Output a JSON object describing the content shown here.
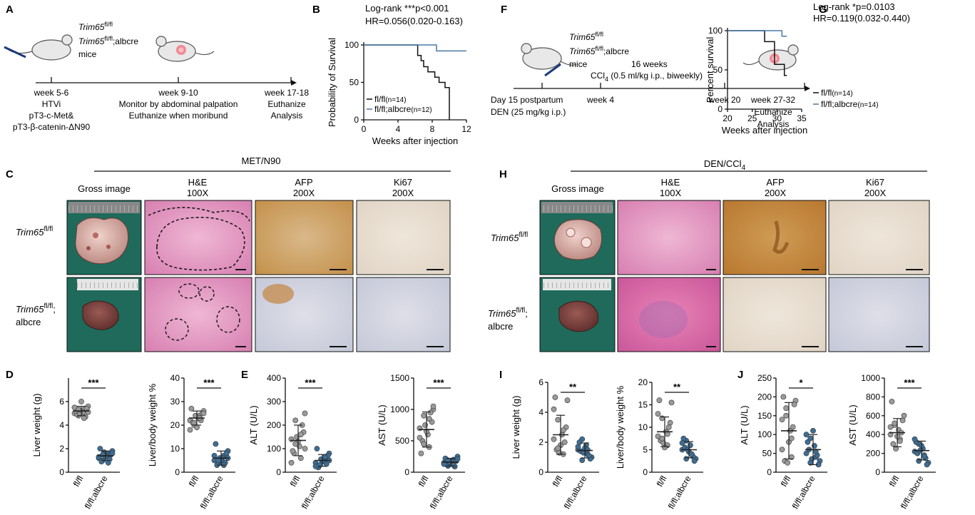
{
  "panels": {
    "A": {
      "label": "A",
      "genotype_top": "Trim65",
      "genotype_top_sup": "fl/fl",
      "genotype_bot": "Trim65",
      "genotype_bot_sup": "fl/fl",
      "genotype_bot_suffix": ";albcre",
      "mice": "mice",
      "t1": [
        "week 5-6",
        "HTVi",
        "pT3-c-Met&",
        "pT3-β-catenin-ΔN90"
      ],
      "t2": [
        "week 9-10",
        "Monitor by abdominal palpation",
        "Euthanize when moribund"
      ],
      "t3": [
        "week 17-18",
        "Euthanize",
        "Analysis"
      ]
    },
    "F": {
      "label": "F",
      "genotype_top": "Trim65",
      "genotype_top_sup": "fl/fl",
      "genotype_bot": "Trim65",
      "genotype_bot_sup": "fl/fl",
      "genotype_bot_suffix": ";albcre",
      "mice": "mice",
      "weeks16": "16 weeks",
      "ccl4": "CCl",
      "ccl4_sub": "4",
      "ccl4_rest": " (0.5 ml/kg i.p., biweekly)",
      "t1": [
        "Day 15 postpartum",
        "DEN (25 mg/kg i.p.)"
      ],
      "t_week4": "week 4",
      "t_week20": "week 20",
      "t3": [
        "week 27-32",
        "Euthanize",
        "Analysis"
      ]
    },
    "C": {
      "label": "C",
      "title": "MET/N90",
      "cols": [
        "Gross image",
        "H&E",
        "100X",
        "AFP",
        "200X",
        "Ki67",
        "200X"
      ],
      "row1": "Trim65",
      "row1_sup": "fl/fl",
      "row2": "Trim65",
      "row2_sup": "fl/fl",
      "row2_sep": ";",
      "row2_l2": "albcre"
    },
    "H": {
      "label": "H",
      "title": "DEN/CCl",
      "title_sub": "4",
      "cols": [
        "Gross image",
        "H&E",
        "100X",
        "AFP",
        "200X",
        "Ki67",
        "200X"
      ],
      "row1": "Trim65",
      "row1_sup": "fl/fl",
      "row2": "Trim65",
      "row2_sup": "fl/fl",
      "row2_sep": ";",
      "row2_l2": "albcre"
    },
    "D": {
      "label": "D"
    },
    "E": {
      "label": "E"
    },
    "I": {
      "label": "I"
    },
    "J": {
      "label": "J"
    }
  },
  "chart_data": [
    {
      "id": "B",
      "type": "line",
      "ylabel": "Probability of Survival",
      "xlabel": "Weeks after injection",
      "xlim": [
        0,
        12
      ],
      "ylim": [
        0,
        100
      ],
      "xticks": [
        0,
        4,
        8,
        12
      ],
      "yticks": [
        0,
        50,
        100
      ],
      "stats": [
        "Log-rank ***p<0.001",
        "HR=0.056(0.020-0.163)"
      ],
      "series": [
        {
          "name": "fl/fl",
          "name_n": "(n=14)",
          "color": "#111111",
          "x": [
            0,
            6.3,
            6.3,
            6.7,
            6.7,
            7.0,
            7.0,
            7.5,
            7.5,
            8.3,
            8.3,
            8.8,
            8.8,
            9.5,
            9.5,
            10.0,
            10.0
          ],
          "y": [
            100,
            100,
            86,
            86,
            79,
            79,
            71,
            71,
            64,
            64,
            57,
            57,
            50,
            50,
            43,
            43,
            0
          ]
        },
        {
          "name": "fl/fl;albcre",
          "name_n": "(n=12)",
          "color": "#4a78a8",
          "x": [
            0,
            8.5,
            8.5,
            12
          ],
          "y": [
            100,
            100,
            92,
            92
          ]
        }
      ]
    },
    {
      "id": "G",
      "type": "line",
      "ylabel": "Percent survival",
      "xlabel": "Weeks after injection",
      "xlim": [
        20,
        35
      ],
      "ylim": [
        0,
        100
      ],
      "xticks": [
        20,
        25,
        30,
        35
      ],
      "yticks": [
        0,
        50,
        100
      ],
      "stats": [
        "Log-rank *p=0.0103",
        "HR=0.119(0.032-0.440)"
      ],
      "series": [
        {
          "name": "fl/fl",
          "name_n": "(n=14)",
          "color": "#111111",
          "x": [
            20,
            27.5,
            27.5,
            29.5,
            29.5,
            31.5,
            31.5,
            32
          ],
          "y": [
            100,
            100,
            86,
            86,
            57,
            57,
            43,
            43
          ]
        },
        {
          "name": "fl/fl;albcre",
          "name_n": "(n=14)",
          "color": "#4a78a8",
          "x": [
            20,
            31,
            31,
            32
          ],
          "y": [
            100,
            100,
            93,
            93
          ]
        }
      ]
    },
    {
      "id": "D1",
      "type": "scatter",
      "ylabel": "Liver weight (g)",
      "categories": [
        "fl/fl",
        "fl/fl;albcre"
      ],
      "ylim": [
        0,
        8
      ],
      "yticks": [
        0,
        2,
        4,
        6
      ],
      "sig": "***",
      "groups": [
        {
          "mean": 5.2,
          "sd": 0.4,
          "values": [
            5.0,
            5.3,
            4.8,
            5.6,
            5.1,
            4.9,
            5.4,
            6.0,
            5.2,
            4.7,
            5.0,
            5.5,
            4.6,
            5.3,
            5.1
          ]
        },
        {
          "mean": 1.4,
          "sd": 0.4,
          "values": [
            1.2,
            1.6,
            1.0,
            1.8,
            1.4,
            0.9,
            1.5,
            1.3,
            2.0,
            1.1,
            1.7,
            1.3,
            0.8,
            1.5,
            1.6
          ]
        }
      ]
    },
    {
      "id": "D2",
      "type": "scatter",
      "ylabel": "Liver/body weight %",
      "categories": [
        "fl/fl",
        "fl/fl;albcre"
      ],
      "ylim": [
        0,
        40
      ],
      "yticks": [
        0,
        10,
        20,
        30,
        40
      ],
      "sig": "***",
      "groups": [
        {
          "mean": 23,
          "sd": 3,
          "values": [
            22,
            24,
            20,
            26,
            23,
            21,
            25,
            19,
            27,
            22,
            24,
            18,
            23,
            21,
            25
          ]
        },
        {
          "mean": 6,
          "sd": 3,
          "values": [
            5,
            7,
            4,
            9,
            6,
            3,
            8,
            5,
            12,
            4,
            6,
            7,
            3,
            5,
            6
          ]
        }
      ]
    },
    {
      "id": "E1",
      "type": "scatter",
      "ylabel": "ALT  (U/L)",
      "categories": [
        "fl/fl",
        "fl/fl;albcre"
      ],
      "ylim": [
        0,
        400
      ],
      "yticks": [
        0,
        100,
        200,
        300,
        400
      ],
      "sig": "***",
      "groups": [
        {
          "mean": 135,
          "sd": 65,
          "values": [
            140,
            60,
            220,
            250,
            110,
            80,
            170,
            130,
            90,
            200,
            150,
            40,
            160,
            120,
            100
          ]
        },
        {
          "mean": 50,
          "sd": 25,
          "values": [
            40,
            60,
            30,
            80,
            50,
            20,
            70,
            45,
            100,
            35,
            55,
            25,
            65,
            30,
            50
          ]
        }
      ]
    },
    {
      "id": "E2",
      "type": "scatter",
      "ylabel": "AST  (U/L)",
      "categories": [
        "fl/fl",
        "fl/fl;albcre"
      ],
      "ylim": [
        0,
        1500
      ],
      "yticks": [
        0,
        500,
        1000,
        1500
      ],
      "sig": "***",
      "groups": [
        {
          "mean": 680,
          "sd": 280,
          "values": [
            700,
            400,
            900,
            1000,
            600,
            500,
            800,
            650,
            300,
            950,
            750,
            550,
            850,
            450,
            1050
          ]
        },
        {
          "mean": 160,
          "sd": 60,
          "values": [
            150,
            200,
            100,
            250,
            170,
            120,
            180,
            140,
            220,
            90,
            160,
            130,
            110,
            190,
            210
          ]
        }
      ]
    },
    {
      "id": "I1",
      "type": "scatter",
      "ylabel": "Liver weight (g)",
      "categories": [
        "fl/fl",
        "fl/fl;albcre"
      ],
      "ylim": [
        0,
        6
      ],
      "yticks": [
        0,
        2,
        4,
        6
      ],
      "sig": "**",
      "groups": [
        {
          "mean": 2.5,
          "sd": 1.3,
          "values": [
            2.2,
            1.2,
            3.5,
            4.8,
            2.5,
            1.5,
            3.0,
            1.8,
            5.0,
            2.0,
            1.3,
            4.2,
            2.8,
            1.6
          ]
        },
        {
          "mean": 1.45,
          "sd": 0.5,
          "values": [
            1.5,
            1.2,
            2.2,
            1.0,
            1.8,
            1.4,
            0.9,
            1.6,
            2.0,
            1.1,
            1.3,
            1.7,
            1.5,
            0.8
          ]
        }
      ]
    },
    {
      "id": "I2",
      "type": "scatter",
      "ylabel": "Liver/body weight %",
      "categories": [
        "fl/fl",
        "fl/fl;albcre"
      ],
      "ylim": [
        0,
        20
      ],
      "yticks": [
        0,
        5,
        10,
        15,
        20
      ],
      "sig": "**",
      "groups": [
        {
          "mean": 9,
          "sd": 3.3,
          "values": [
            8,
            6,
            12,
            15.5,
            9,
            7,
            11,
            5.5,
            16,
            10,
            6.5,
            13,
            8.5,
            7.5
          ]
        },
        {
          "mean": 5,
          "sd": 1.8,
          "values": [
            5,
            4,
            7,
            3,
            6,
            5.5,
            2.5,
            4.5,
            7.5,
            3.5,
            5,
            6.5,
            4,
            3
          ]
        }
      ]
    },
    {
      "id": "J1",
      "type": "scatter",
      "ylabel": "ALT  (U/L)",
      "categories": [
        "fl/fl",
        "fl/fl;albcre"
      ],
      "ylim": [
        0,
        250
      ],
      "yticks": [
        0,
        50,
        100,
        150,
        200,
        250
      ],
      "sig": "*",
      "groups": [
        {
          "mean": 110,
          "sd": 75,
          "values": [
            60,
            40,
            150,
            190,
            110,
            30,
            180,
            80,
            200,
            120,
            25,
            140,
            90,
            170
          ]
        },
        {
          "mean": 60,
          "sd": 40,
          "values": [
            50,
            40,
            90,
            30,
            70,
            60,
            20,
            110,
            80,
            45,
            35,
            100,
            55,
            25
          ]
        }
      ]
    },
    {
      "id": "J2",
      "type": "scatter",
      "ylabel": "AST  (U/L)",
      "categories": [
        "fl/fl",
        "fl/fl;albcre"
      ],
      "ylim": [
        0,
        1000
      ],
      "yticks": [
        0,
        200,
        400,
        600,
        800,
        1000
      ],
      "sig": "***",
      "groups": [
        {
          "mean": 420,
          "sd": 150,
          "values": [
            400,
            350,
            500,
            600,
            450,
            300,
            550,
            380,
            750,
            420,
            250,
            480,
            330,
            520
          ]
        },
        {
          "mean": 230,
          "sd": 100,
          "values": [
            220,
            180,
            300,
            100,
            250,
            200,
            80,
            280,
            320,
            150,
            230,
            350,
            170,
            120
          ]
        }
      ]
    }
  ]
}
